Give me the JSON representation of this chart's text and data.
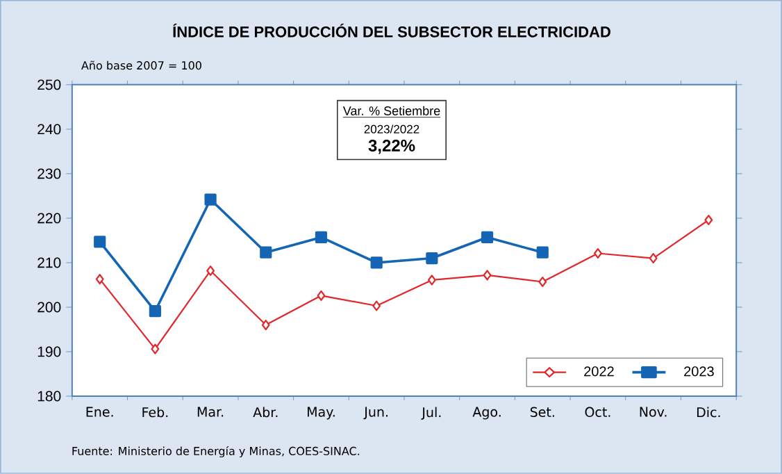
{
  "chart_data": {
    "type": "line",
    "title": "ÍNDICE DE PRODUCCIÓN DEL SUBSECTOR ELECTRICIDAD",
    "categories": [
      "Ene.",
      "Feb.",
      "Mar.",
      "Abr.",
      "May.",
      "Jun.",
      "Jul.",
      "Ago.",
      "Set.",
      "Oct.",
      "Nov.",
      "Dic."
    ],
    "series": [
      {
        "name": "2022",
        "color": "#e3262a",
        "marker": "diamond",
        "values": [
          206.3,
          190.6,
          208.2,
          196.0,
          202.6,
          200.3,
          206.1,
          207.2,
          205.7,
          212.1,
          211.0,
          219.6
        ]
      },
      {
        "name": "2023",
        "color": "#1565b5",
        "marker": "square",
        "values": [
          214.7,
          199.1,
          224.2,
          212.3,
          215.7,
          210.0,
          211.0,
          215.7,
          212.3,
          null,
          null,
          null
        ]
      }
    ],
    "ylim": [
      180,
      250
    ],
    "yticks": [
      180,
      190,
      200,
      210,
      220,
      230,
      240,
      250
    ],
    "grid": false,
    "legend": "bottom right",
    "line_style": "solid",
    "annotations": [
      "Año base  2007  =  100",
      "Var. % Setiembre",
      "2023/2022",
      "3,22%",
      "Fuente: Ministerio de Energía y Minas, COES-SINAC."
    ]
  }
}
